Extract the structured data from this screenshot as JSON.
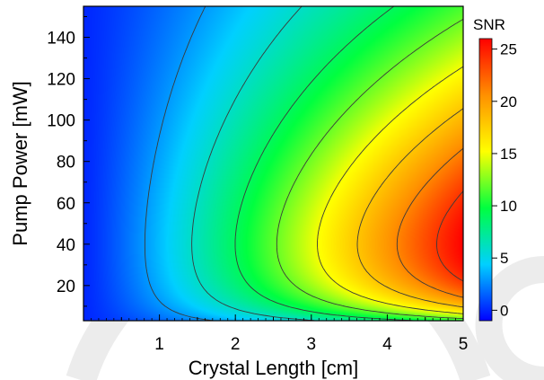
{
  "chart_data": {
    "type": "heatmap",
    "title": "",
    "xlabel": "Crystal Length [cm]",
    "ylabel": "Pump Power [mW]",
    "xlim": [
      0,
      5
    ],
    "ylim": [
      3,
      155
    ],
    "xticks": [
      1,
      2,
      3,
      4,
      5
    ],
    "yticks": [
      20,
      40,
      60,
      80,
      100,
      120,
      140
    ],
    "grid": false,
    "colorbar": {
      "label": "SNR",
      "range": [
        -1,
        26
      ],
      "ticks": [
        0,
        5,
        10,
        15,
        20,
        25
      ],
      "colormap": [
        "#0000ff",
        "#00d0ff",
        "#00ff40",
        "#ffff00",
        "#ff9000",
        "#ff0000"
      ]
    },
    "peak": {
      "x": 5.0,
      "y": 40,
      "value": 26
    },
    "contour_levels": [
      3,
      6,
      9,
      12,
      15,
      18,
      21,
      24
    ],
    "contour_color": "#3a3a3a"
  }
}
